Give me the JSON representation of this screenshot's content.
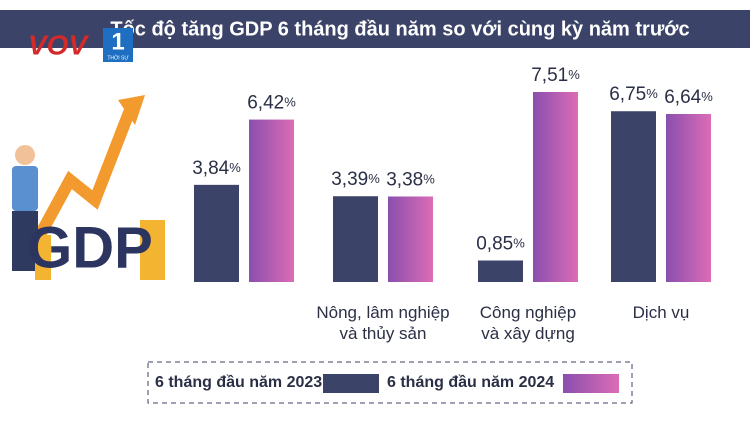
{
  "logo": {
    "brand": "VOV",
    "channel": "1",
    "tagline": "THỜI SỰ"
  },
  "illustration_text": "GDP",
  "chart_data": {
    "type": "bar",
    "title": "Tốc độ tăng GDP 6 tháng đầu năm so với cùng kỳ năm trước",
    "categories": [
      null,
      "Nông, lâm nghiệp\nvà thủy sản",
      "Công nghiệp\nvà xây dựng",
      "Dịch vụ"
    ],
    "series": [
      {
        "name": "6 tháng đầu năm 2023",
        "color": "#3c4368",
        "values": [
          3.84,
          3.39,
          0.85,
          6.75
        ],
        "value_labels": [
          "3,84%",
          "3,39%",
          "0,85%",
          "6,75%"
        ]
      },
      {
        "name": "6 tháng đầu năm 2024",
        "color": [
          "#8a4fae",
          "#dc6cb6"
        ],
        "values": [
          6.42,
          3.38,
          7.51,
          6.64
        ],
        "value_labels": [
          "6,42%",
          "3,38%",
          "7,51%",
          "6,64%"
        ]
      }
    ],
    "ylim": [
      0,
      7.51
    ]
  }
}
